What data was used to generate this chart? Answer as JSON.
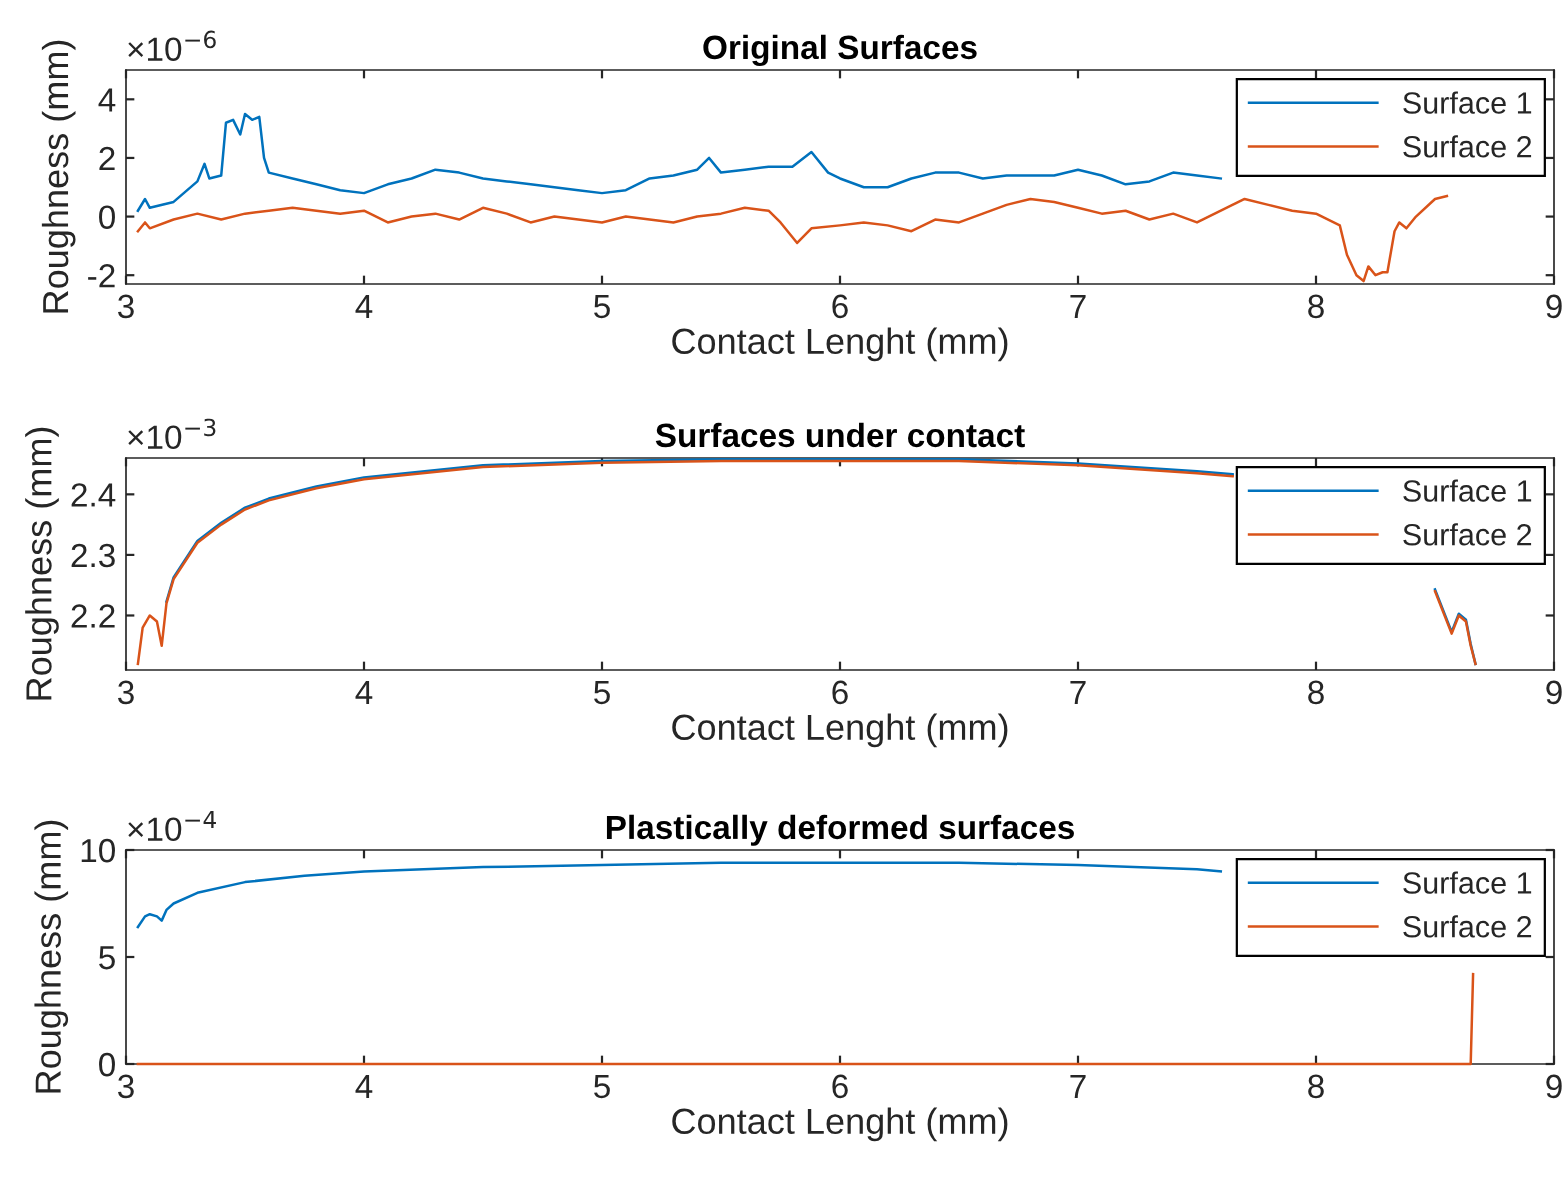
{
  "chart_data": [
    {
      "type": "line",
      "title": "Original Surfaces",
      "xlabel": "Contact Lenght (mm)",
      "ylabel": "Roughness (mm)",
      "annotations": [
        "×10$^{−6}$"
      ],
      "xlim": [
        3,
        9
      ],
      "xticks": [
        3,
        4,
        5,
        6,
        7,
        8,
        9
      ],
      "ylim": [
        -2.3,
        5
      ],
      "yticks": [
        -2,
        0,
        2,
        4
      ],
      "grid": false,
      "legend": "top right",
      "line_style": "solid",
      "marker": "none",
      "series": [
        {
          "name": "Surface 1",
          "color": "#0072bd",
          "x": [
            3.05,
            3.08,
            3.1,
            3.2,
            3.3,
            3.33,
            3.35,
            3.4,
            3.42,
            3.45,
            3.48,
            3.5,
            3.53,
            3.56,
            3.58,
            3.6,
            3.7,
            3.8,
            3.9,
            4.0,
            4.1,
            4.2,
            4.3,
            4.4,
            4.5,
            4.6,
            4.7,
            4.8,
            4.9,
            5.0,
            5.1,
            5.2,
            5.3,
            5.4,
            5.45,
            5.5,
            5.6,
            5.7,
            5.8,
            5.88,
            5.95,
            6.0,
            6.1,
            6.2,
            6.3,
            6.4,
            6.5,
            6.6,
            6.7,
            6.8,
            6.9,
            7.0,
            7.1,
            7.2,
            7.3,
            7.4,
            7.5,
            7.6
          ],
          "values": [
            0.2,
            0.6,
            0.3,
            0.5,
            1.2,
            1.8,
            1.3,
            1.4,
            3.2,
            3.3,
            2.8,
            3.5,
            3.3,
            3.4,
            2.0,
            1.5,
            1.3,
            1.1,
            0.9,
            0.8,
            1.1,
            1.3,
            1.6,
            1.5,
            1.3,
            1.2,
            1.1,
            1.0,
            0.9,
            0.8,
            0.9,
            1.3,
            1.4,
            1.6,
            2.0,
            1.5,
            1.6,
            1.7,
            1.7,
            2.2,
            1.5,
            1.3,
            1.0,
            1.0,
            1.3,
            1.5,
            1.5,
            1.3,
            1.4,
            1.4,
            1.4,
            1.6,
            1.4,
            1.1,
            1.2,
            1.5,
            1.4,
            1.3
          ]
        },
        {
          "name": "Surface 2",
          "color": "#d95319",
          "x": [
            3.05,
            3.08,
            3.1,
            3.2,
            3.3,
            3.4,
            3.5,
            3.6,
            3.7,
            3.8,
            3.9,
            4.0,
            4.1,
            4.2,
            4.3,
            4.4,
            4.5,
            4.6,
            4.7,
            4.8,
            4.9,
            5.0,
            5.1,
            5.2,
            5.3,
            5.4,
            5.5,
            5.6,
            5.7,
            5.75,
            5.82,
            5.88,
            6.0,
            6.1,
            6.2,
            6.3,
            6.4,
            6.5,
            6.6,
            6.7,
            6.8,
            6.9,
            7.0,
            7.1,
            7.2,
            7.3,
            7.4,
            7.5,
            7.6,
            7.7,
            7.8,
            7.9,
            8.0,
            8.1,
            8.13,
            8.17,
            8.2,
            8.22,
            8.25,
            8.28,
            8.3,
            8.33,
            8.35,
            8.38,
            8.42,
            8.5,
            8.55
          ],
          "values": [
            -0.5,
            -0.2,
            -0.4,
            -0.1,
            0.1,
            -0.1,
            0.1,
            0.2,
            0.3,
            0.2,
            0.1,
            0.2,
            -0.2,
            0.0,
            0.1,
            -0.1,
            0.3,
            0.1,
            -0.2,
            0.0,
            -0.1,
            -0.2,
            0.0,
            -0.1,
            -0.2,
            0.0,
            0.1,
            0.3,
            0.2,
            -0.2,
            -0.9,
            -0.4,
            -0.3,
            -0.2,
            -0.3,
            -0.5,
            -0.1,
            -0.2,
            0.1,
            0.4,
            0.6,
            0.5,
            0.3,
            0.1,
            0.2,
            -0.1,
            0.1,
            -0.2,
            0.2,
            0.6,
            0.4,
            0.2,
            0.1,
            -0.3,
            -1.3,
            -2.0,
            -2.2,
            -1.7,
            -2.0,
            -1.9,
            -1.9,
            -0.5,
            -0.2,
            -0.4,
            0.0,
            0.6,
            0.7
          ]
        }
      ]
    },
    {
      "type": "line",
      "title": "Surfaces under contact",
      "xlabel": "Contact Lenght (mm)",
      "ylabel": "Roughness (mm)",
      "annotations": [
        "×10$^{−3}$"
      ],
      "xlim": [
        3,
        9
      ],
      "xticks": [
        3,
        4,
        5,
        6,
        7,
        8,
        9
      ],
      "ylim": [
        2.11,
        2.46
      ],
      "yticks": [
        2.2,
        2.3,
        2.4
      ],
      "grid": false,
      "legend": "top right",
      "line_style": "solid",
      "marker": "none",
      "series": [
        {
          "name": "Surface 1",
          "color": "#0072bd",
          "x": [
            3.17,
            3.2,
            3.3,
            3.4,
            3.5,
            3.6,
            3.8,
            4.0,
            4.5,
            5.0,
            5.5,
            6.0,
            6.5,
            7.0,
            7.5,
            7.65,
            8.1,
            8.5,
            8.57,
            8.6,
            8.63,
            8.65,
            8.67
          ],
          "values": [
            2.223,
            2.263,
            2.323,
            2.353,
            2.378,
            2.393,
            2.413,
            2.428,
            2.448,
            2.455,
            2.458,
            2.458,
            2.458,
            2.451,
            2.438,
            2.433,
            null,
            2.243,
            2.173,
            2.203,
            2.193,
            2.153,
            2.12
          ]
        },
        {
          "name": "Surface 2",
          "color": "#d95319",
          "x": [
            3.05,
            3.07,
            3.1,
            3.13,
            3.15,
            3.17,
            3.2,
            3.3,
            3.4,
            3.5,
            3.6,
            3.8,
            4.0,
            4.5,
            5.0,
            5.5,
            6.0,
            6.5,
            7.0,
            7.5,
            7.65,
            8.1,
            8.5,
            8.57,
            8.6,
            8.63,
            8.65,
            8.67
          ],
          "values": [
            2.12,
            2.18,
            2.2,
            2.19,
            2.15,
            2.22,
            2.26,
            2.32,
            2.35,
            2.375,
            2.39,
            2.41,
            2.425,
            2.445,
            2.452,
            2.455,
            2.455,
            2.455,
            2.448,
            2.435,
            2.43,
            null,
            2.24,
            2.17,
            2.2,
            2.19,
            2.15,
            2.12
          ]
        }
      ]
    },
    {
      "type": "line",
      "title": "Plastically deformed surfaces",
      "xlabel": "Contact Lenght (mm)",
      "ylabel": "Roughness (mm)",
      "annotations": [
        "×10$^{−4}$"
      ],
      "xlim": [
        3,
        9
      ],
      "xticks": [
        3,
        4,
        5,
        6,
        7,
        8,
        9
      ],
      "ylim": [
        0,
        10
      ],
      "yticks": [
        0,
        5,
        10
      ],
      "grid": false,
      "legend": "top right",
      "line_style": "solid",
      "marker": "none",
      "series": [
        {
          "name": "Surface 1",
          "color": "#0072bd",
          "x": [
            3.05,
            3.08,
            3.1,
            3.13,
            3.15,
            3.17,
            3.2,
            3.3,
            3.5,
            3.75,
            4.0,
            4.5,
            5.0,
            5.5,
            6.0,
            6.5,
            7.0,
            7.5,
            7.6
          ],
          "values": [
            6.4,
            6.9,
            7.0,
            6.9,
            6.7,
            7.2,
            7.5,
            8.0,
            8.5,
            8.8,
            9.0,
            9.2,
            9.3,
            9.4,
            9.4,
            9.4,
            9.3,
            9.1,
            9.0
          ]
        },
        {
          "name": "Surface 2",
          "color": "#d95319",
          "x": [
            3.05,
            4,
            5,
            6,
            7,
            8,
            8.65,
            8.66
          ],
          "values": [
            0,
            0,
            0,
            0,
            0,
            0,
            0,
            4.2
          ]
        }
      ]
    }
  ]
}
